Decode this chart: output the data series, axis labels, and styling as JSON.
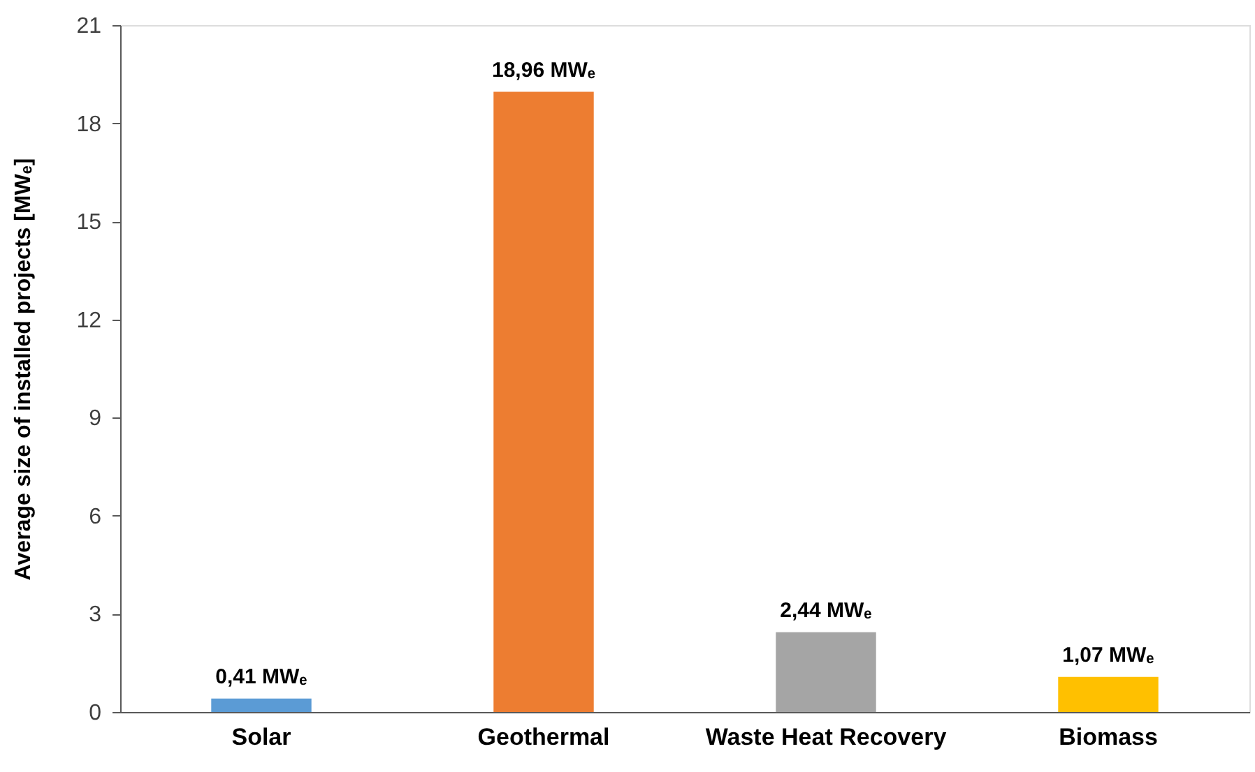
{
  "chart_data": {
    "type": "bar",
    "ylabel": "Average size of installed projects [MWₑ]",
    "categories": [
      "Solar",
      "Geothermal",
      "Waste Heat Recovery",
      "Biomass"
    ],
    "values": [
      0.41,
      18.96,
      2.44,
      1.07
    ],
    "colors": [
      "#5b9bd5",
      "#ed7d31",
      "#a5a5a5",
      "#ffc000"
    ],
    "value_labels": [
      "0,41 MWₑ",
      "18,96 MWₑ",
      "2,44 MWₑ",
      "1,07 MWₑ"
    ],
    "ylim": [
      0,
      21
    ],
    "yticks": [
      0,
      3,
      6,
      9,
      12,
      15,
      18,
      21
    ],
    "grid": false
  }
}
